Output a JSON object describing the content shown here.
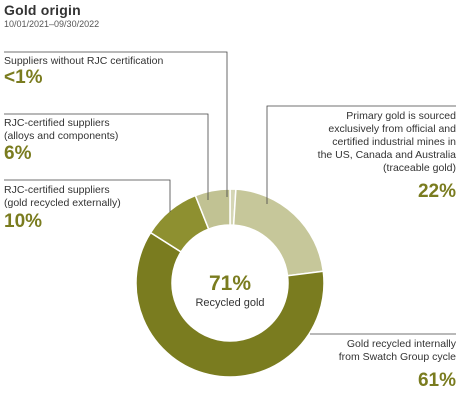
{
  "header": {
    "title": "Gold origin",
    "subtitle": "10/01/2021–09/30/2022"
  },
  "center": {
    "pct": "71%",
    "label": "Recycled gold"
  },
  "annotations": {
    "no_rjc": {
      "text": "Suppliers without RJC certification",
      "pct": "<1%"
    },
    "alloys": {
      "line1": "RJC-certified suppliers",
      "line2": "(alloys and components)",
      "pct": "6%"
    },
    "external": {
      "line1": "RJC-certified suppliers",
      "line2": "(gold recycled externally)",
      "pct": "10%"
    },
    "primary": {
      "line1": "Primary gold is sourced",
      "line2": "exclusively from official and",
      "line3": "certified industrial mines in",
      "line4": "the US, Canada and Australia",
      "line5": "(traceable gold)",
      "pct": "22%"
    },
    "internal": {
      "line1": "Gold recycled internally",
      "line2": "from Swatch Group cycle",
      "pct": "61%"
    }
  },
  "chart_data": {
    "type": "pie",
    "hole": true,
    "title": "Gold origin",
    "subtitle": "10/01/2021–09/30/2022",
    "center_text": [
      "71%",
      "Recycled gold"
    ],
    "slices": [
      {
        "name": "Suppliers without RJC certification",
        "value": 1,
        "display": "<1%",
        "color": "#d5d6b5"
      },
      {
        "name": "Primary gold (traceable gold)",
        "value": 22,
        "display": "22%",
        "color": "#c6c79a"
      },
      {
        "name": "Gold recycled internally from Swatch Group cycle",
        "value": 61,
        "display": "61%",
        "color": "#7a7c1f"
      },
      {
        "name": "RJC-certified suppliers (gold recycled externally)",
        "value": 10,
        "display": "10%",
        "color": "#8e9030"
      },
      {
        "name": "RJC-certified suppliers (alloys and components)",
        "value": 6,
        "display": "6%",
        "color": "#c1c293"
      }
    ]
  }
}
